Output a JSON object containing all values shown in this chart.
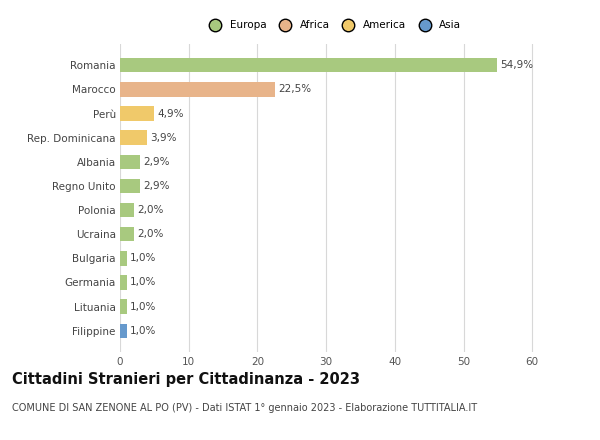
{
  "categories": [
    "Romania",
    "Marocco",
    "Perù",
    "Rep. Dominicana",
    "Albania",
    "Regno Unito",
    "Polonia",
    "Ucraina",
    "Bulgaria",
    "Germania",
    "Lituania",
    "Filippine"
  ],
  "values": [
    54.9,
    22.5,
    4.9,
    3.9,
    2.9,
    2.9,
    2.0,
    2.0,
    1.0,
    1.0,
    1.0,
    1.0
  ],
  "labels": [
    "54,9%",
    "22,5%",
    "4,9%",
    "3,9%",
    "2,9%",
    "2,9%",
    "2,0%",
    "2,0%",
    "1,0%",
    "1,0%",
    "1,0%",
    "1,0%"
  ],
  "colors": [
    "#a8c97f",
    "#e8b48a",
    "#f0c96a",
    "#f0c96a",
    "#a8c97f",
    "#a8c97f",
    "#a8c97f",
    "#a8c97f",
    "#a8c97f",
    "#a8c97f",
    "#a8c97f",
    "#6699cc"
  ],
  "legend_labels": [
    "Europa",
    "Africa",
    "America",
    "Asia"
  ],
  "legend_colors": [
    "#a8c97f",
    "#e8b48a",
    "#f0c96a",
    "#6699cc"
  ],
  "xlim": [
    0,
    62
  ],
  "xticks": [
    0,
    10,
    20,
    30,
    40,
    50,
    60
  ],
  "title": "Cittadini Stranieri per Cittadinanza - 2023",
  "subtitle": "COMUNE DI SAN ZENONE AL PO (PV) - Dati ISTAT 1° gennaio 2023 - Elaborazione TUTTITALIA.IT",
  "background_color": "#ffffff",
  "grid_color": "#d8d8d8",
  "bar_height": 0.6,
  "label_fontsize": 7.5,
  "title_fontsize": 10.5,
  "subtitle_fontsize": 7.0
}
